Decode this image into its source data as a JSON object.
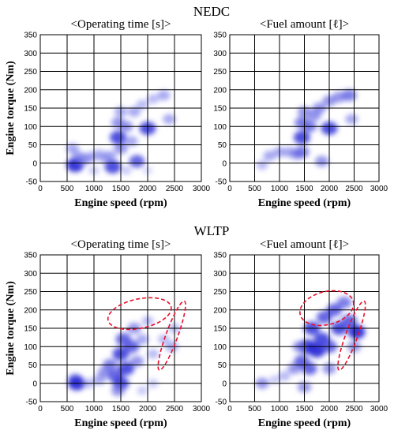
{
  "figure": {
    "groups": [
      {
        "title": "NEDC"
      },
      {
        "title": "WLTP"
      }
    ]
  },
  "chart_data": [
    {
      "type": "heatmap",
      "group": "NEDC",
      "title": "<Operating time [s]>",
      "xlabel": "Engine speed (rpm)",
      "ylabel": "Engine torque (Nm)",
      "xlim": [
        0,
        3000
      ],
      "ylim": [
        -50,
        350
      ],
      "xticks": [
        0,
        500,
        1000,
        1500,
        2000,
        2500,
        3000
      ],
      "yticks": [
        -50,
        0,
        50,
        100,
        150,
        200,
        250,
        300,
        350
      ],
      "grid": true,
      "colormap": [
        "#ffffff",
        "#2b2bd6"
      ],
      "points": [
        {
          "x": 600,
          "y": 40,
          "w": 0.5
        },
        {
          "x": 700,
          "y": 20,
          "w": 0.5
        },
        {
          "x": 650,
          "y": -5,
          "w": 1.0
        },
        {
          "x": 800,
          "y": 10,
          "w": 0.6
        },
        {
          "x": 900,
          "y": 15,
          "w": 0.5
        },
        {
          "x": 1000,
          "y": 20,
          "w": 0.4
        },
        {
          "x": 1100,
          "y": 25,
          "w": 0.4
        },
        {
          "x": 1200,
          "y": 15,
          "w": 0.5
        },
        {
          "x": 1300,
          "y": 20,
          "w": 0.5
        },
        {
          "x": 1350,
          "y": -10,
          "w": 0.9
        },
        {
          "x": 1450,
          "y": 70,
          "w": 0.9
        },
        {
          "x": 1500,
          "y": 40,
          "w": 0.6
        },
        {
          "x": 1450,
          "y": 110,
          "w": 0.6
        },
        {
          "x": 1500,
          "y": 140,
          "w": 0.5
        },
        {
          "x": 1600,
          "y": 100,
          "w": 0.6
        },
        {
          "x": 1700,
          "y": 60,
          "w": 0.5
        },
        {
          "x": 1800,
          "y": 5,
          "w": 0.8
        },
        {
          "x": 1750,
          "y": 140,
          "w": 0.5
        },
        {
          "x": 2000,
          "y": 95,
          "w": 0.9
        },
        {
          "x": 1900,
          "y": 160,
          "w": 0.4
        },
        {
          "x": 2100,
          "y": 175,
          "w": 0.4
        },
        {
          "x": 2300,
          "y": 185,
          "w": 0.5
        },
        {
          "x": 2400,
          "y": 120,
          "w": 0.5
        },
        {
          "x": 1000,
          "y": -20,
          "w": 0.3
        },
        {
          "x": 1600,
          "y": -20,
          "w": 0.3
        },
        {
          "x": 2000,
          "y": -20,
          "w": 0.2
        }
      ]
    },
    {
      "type": "heatmap",
      "group": "NEDC",
      "title": "<Fuel amount [ℓ]>",
      "xlabel": "Engine speed (rpm)",
      "ylabel": "",
      "xlim": [
        0,
        3000
      ],
      "ylim": [
        -50,
        350
      ],
      "xticks": [
        0,
        500,
        1000,
        1500,
        2000,
        2500,
        3000
      ],
      "yticks": [
        -50,
        0,
        50,
        100,
        150,
        200,
        250,
        300,
        350
      ],
      "grid": true,
      "colormap": [
        "#ffffff",
        "#2b2bd6"
      ],
      "points": [
        {
          "x": 650,
          "y": -5,
          "w": 0.4
        },
        {
          "x": 800,
          "y": 20,
          "w": 0.5
        },
        {
          "x": 1000,
          "y": 30,
          "w": 0.5
        },
        {
          "x": 1200,
          "y": 30,
          "w": 0.5
        },
        {
          "x": 1350,
          "y": 25,
          "w": 0.6
        },
        {
          "x": 1450,
          "y": 70,
          "w": 0.9
        },
        {
          "x": 1450,
          "y": 110,
          "w": 0.7
        },
        {
          "x": 1500,
          "y": 140,
          "w": 0.6
        },
        {
          "x": 1600,
          "y": 100,
          "w": 0.7
        },
        {
          "x": 1700,
          "y": 130,
          "w": 0.6
        },
        {
          "x": 1800,
          "y": 150,
          "w": 0.6
        },
        {
          "x": 2000,
          "y": 95,
          "w": 0.9
        },
        {
          "x": 2000,
          "y": 170,
          "w": 0.6
        },
        {
          "x": 2200,
          "y": 180,
          "w": 0.6
        },
        {
          "x": 2400,
          "y": 185,
          "w": 0.7
        },
        {
          "x": 2450,
          "y": 120,
          "w": 0.5
        },
        {
          "x": 1850,
          "y": 5,
          "w": 0.6
        },
        {
          "x": 1450,
          "y": 30,
          "w": 0.7
        }
      ]
    },
    {
      "type": "heatmap",
      "group": "WLTP",
      "title": "<Operating time [s]>",
      "xlabel": "Engine speed (rpm)",
      "ylabel": "Engine torque (Nm)",
      "xlim": [
        0,
        3000
      ],
      "ylim": [
        -50,
        350
      ],
      "xticks": [
        0,
        500,
        1000,
        1500,
        2000,
        2500,
        3000
      ],
      "yticks": [
        -50,
        0,
        50,
        100,
        150,
        200,
        250,
        300,
        350
      ],
      "grid": true,
      "colormap": [
        "#ffffff",
        "#2b2bd6"
      ],
      "annotations": [
        {
          "shape": "ellipse",
          "cx": 1850,
          "cy": 190,
          "rx": 600,
          "ry": 40,
          "rotate": -12,
          "color": "#e8102a",
          "style": "dashed"
        },
        {
          "shape": "ellipse",
          "cx": 2450,
          "cy": 130,
          "rx": 110,
          "ry": 100,
          "rotate": 20,
          "color": "#e8102a",
          "style": "dashed"
        }
      ],
      "points": [
        {
          "x": 650,
          "y": 10,
          "w": 0.7
        },
        {
          "x": 680,
          "y": 0,
          "w": 1.0
        },
        {
          "x": 900,
          "y": 0,
          "w": 0.4
        },
        {
          "x": 1100,
          "y": 10,
          "w": 0.5
        },
        {
          "x": 1200,
          "y": 30,
          "w": 0.6
        },
        {
          "x": 1300,
          "y": 50,
          "w": 0.7
        },
        {
          "x": 1400,
          "y": 20,
          "w": 0.8
        },
        {
          "x": 1500,
          "y": 0,
          "w": 0.9
        },
        {
          "x": 1450,
          "y": -20,
          "w": 0.6
        },
        {
          "x": 1500,
          "y": 80,
          "w": 0.9
        },
        {
          "x": 1550,
          "y": 120,
          "w": 0.8
        },
        {
          "x": 1600,
          "y": 40,
          "w": 0.9
        },
        {
          "x": 1700,
          "y": 100,
          "w": 0.8
        },
        {
          "x": 1750,
          "y": 150,
          "w": 0.6
        },
        {
          "x": 1800,
          "y": 60,
          "w": 0.6
        },
        {
          "x": 1900,
          "y": 120,
          "w": 0.5
        },
        {
          "x": 2000,
          "y": 170,
          "w": 0.4
        },
        {
          "x": 2100,
          "y": 80,
          "w": 0.4
        },
        {
          "x": 2300,
          "y": 120,
          "w": 0.4
        },
        {
          "x": 2450,
          "y": 100,
          "w": 0.5
        },
        {
          "x": 2500,
          "y": 150,
          "w": 0.4
        },
        {
          "x": 1900,
          "y": -20,
          "w": 0.3
        },
        {
          "x": 2100,
          "y": 0,
          "w": 0.3
        }
      ]
    },
    {
      "type": "heatmap",
      "group": "WLTP",
      "title": "<Fuel amount [ℓ]>",
      "xlabel": "Engine speed (rpm)",
      "ylabel": "",
      "xlim": [
        0,
        3000
      ],
      "ylim": [
        -50,
        350
      ],
      "xticks": [
        0,
        500,
        1000,
        1500,
        2000,
        2500,
        3000
      ],
      "yticks": [
        -50,
        0,
        50,
        100,
        150,
        200,
        250,
        300,
        350
      ],
      "grid": true,
      "colormap": [
        "#ffffff",
        "#2b2bd6"
      ],
      "annotations": [
        {
          "shape": "ellipse",
          "cx": 1950,
          "cy": 205,
          "rx": 550,
          "ry": 45,
          "rotate": -14,
          "color": "#e8102a",
          "style": "dashed"
        },
        {
          "shape": "ellipse",
          "cx": 2450,
          "cy": 130,
          "rx": 120,
          "ry": 100,
          "rotate": 20,
          "color": "#e8102a",
          "style": "dashed"
        }
      ],
      "points": [
        {
          "x": 650,
          "y": 0,
          "w": 0.6
        },
        {
          "x": 900,
          "y": 10,
          "w": 0.3
        },
        {
          "x": 1100,
          "y": 20,
          "w": 0.4
        },
        {
          "x": 1300,
          "y": 40,
          "w": 0.6
        },
        {
          "x": 1450,
          "y": 60,
          "w": 0.8
        },
        {
          "x": 1550,
          "y": 100,
          "w": 1.0
        },
        {
          "x": 1600,
          "y": 40,
          "w": 0.8
        },
        {
          "x": 1650,
          "y": 150,
          "w": 0.9
        },
        {
          "x": 1750,
          "y": 90,
          "w": 1.0
        },
        {
          "x": 1850,
          "y": 120,
          "w": 0.9
        },
        {
          "x": 1900,
          "y": 180,
          "w": 0.8
        },
        {
          "x": 2000,
          "y": 100,
          "w": 0.8
        },
        {
          "x": 2100,
          "y": 200,
          "w": 0.8
        },
        {
          "x": 2200,
          "y": 150,
          "w": 0.9
        },
        {
          "x": 2300,
          "y": 220,
          "w": 0.7
        },
        {
          "x": 2400,
          "y": 170,
          "w": 0.8
        },
        {
          "x": 2550,
          "y": 140,
          "w": 1.0
        },
        {
          "x": 2500,
          "y": 100,
          "w": 0.6
        },
        {
          "x": 1500,
          "y": -10,
          "w": 0.6
        },
        {
          "x": 2000,
          "y": 40,
          "w": 0.6
        },
        {
          "x": 1400,
          "y": 100,
          "w": 0.6
        }
      ]
    }
  ]
}
